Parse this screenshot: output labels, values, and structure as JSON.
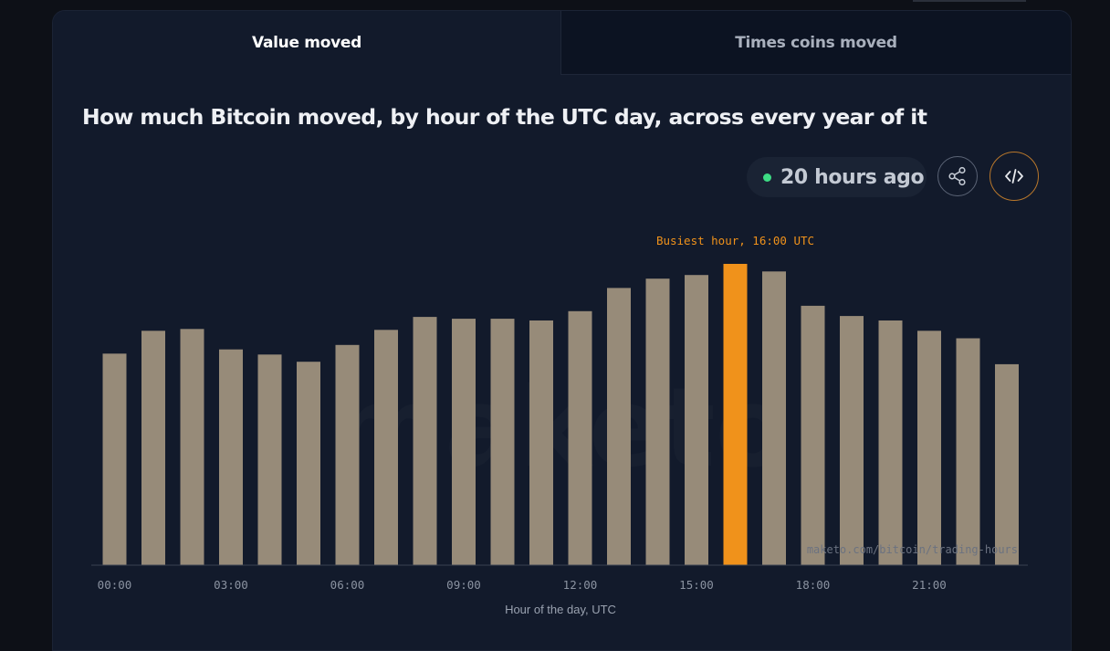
{
  "tabs": [
    {
      "label": "Value moved",
      "active": true
    },
    {
      "label": "Times coins moved",
      "active": false
    }
  ],
  "title": "How much Bitcoin moved, by hour of the UTC day, across every year of it",
  "status": {
    "text": "20 hours ago",
    "dot_color": "#3ddc84"
  },
  "buttons": {
    "share_icon": "share-icon",
    "embed_icon": "code-icon"
  },
  "colors": {
    "bar": "#978b79",
    "highlight": "#f0921b",
    "background": "#121a2b"
  },
  "chart_data": {
    "type": "bar",
    "categories": [
      "00:00",
      "01:00",
      "02:00",
      "03:00",
      "04:00",
      "05:00",
      "06:00",
      "07:00",
      "08:00",
      "09:00",
      "10:00",
      "11:00",
      "12:00",
      "13:00",
      "14:00",
      "15:00",
      "16:00",
      "17:00",
      "18:00",
      "19:00",
      "20:00",
      "21:00",
      "22:00",
      "23:00"
    ],
    "values": [
      70.2,
      77.8,
      78.4,
      71.6,
      69.9,
      67.5,
      73.1,
      78.1,
      82.4,
      81.8,
      81.8,
      81.2,
      84.3,
      92.0,
      95.1,
      96.3,
      100,
      97.5,
      86.1,
      82.7,
      81.2,
      77.8,
      75.3,
      66.7
    ],
    "ylim": [
      0,
      100
    ],
    "xticks": [
      "00:00",
      "03:00",
      "06:00",
      "09:00",
      "12:00",
      "15:00",
      "18:00",
      "21:00"
    ],
    "xlabel": "Hour of the day, UTC",
    "ylabel": "",
    "highlight_index": 16,
    "annotation": "Busiest hour, 16:00 UTC",
    "watermark": "maketo",
    "source_label": "maketo.com/bitcoin/trading-hours",
    "grid": false,
    "legend": "none"
  }
}
